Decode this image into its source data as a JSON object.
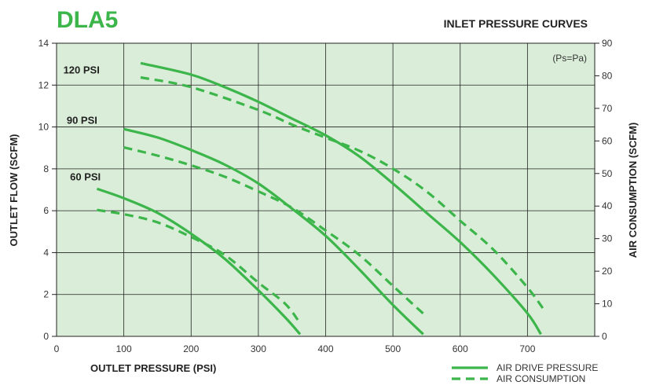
{
  "header": {
    "model": "DLA5",
    "subtitle": "INLET PRESSURE CURVES"
  },
  "colors": {
    "curve": "#3cb54a",
    "plot_background": "#d9edd8",
    "grid": "#222222",
    "title": "#3cb54a"
  },
  "chart_data": {
    "type": "line",
    "title": "INLET PRESSURE CURVES",
    "xlabel": "OUTLET PRESSURE (PSI)",
    "ylabel": "OUTLET FLOW (SCFM)",
    "y2label": "AIR CONSUMPTION (SCFM)",
    "xlim": [
      0,
      800
    ],
    "ylim": [
      0,
      14
    ],
    "y2lim": [
      0,
      90
    ],
    "xticks": [
      0,
      100,
      200,
      300,
      400,
      500,
      600,
      700
    ],
    "yticks": [
      0,
      2,
      4,
      6,
      8,
      10,
      12,
      14
    ],
    "y2ticks": [
      0,
      10,
      20,
      30,
      40,
      50,
      60,
      70,
      80,
      90
    ],
    "grid": true,
    "note": "(Ps=Pa)",
    "curve_labels": [
      {
        "text": "120 PSI",
        "x": 10,
        "y": 12.7
      },
      {
        "text": "90 PSI",
        "x": 15,
        "y": 10.3
      },
      {
        "text": "60 PSI",
        "x": 20,
        "y": 7.6
      }
    ],
    "legend": {
      "position": "bottom-right",
      "entries": [
        {
          "label": "AIR DRIVE PRESSURE",
          "style": "solid"
        },
        {
          "label": "AIR CONSUMPTION",
          "style": "dashed"
        }
      ]
    },
    "series": [
      {
        "group": "120 PSI",
        "style": "solid",
        "axis": "left",
        "x": [
          125,
          200,
          250,
          300,
          350,
          400,
          450,
          500,
          550,
          600,
          650,
          700,
          720
        ],
        "y": [
          13.05,
          12.5,
          11.9,
          11.2,
          10.4,
          9.6,
          8.6,
          7.3,
          5.9,
          4.5,
          2.9,
          1.1,
          0.1
        ]
      },
      {
        "group": "120 PSI",
        "style": "dashed",
        "axis": "right",
        "x": [
          125,
          200,
          300,
          350,
          400,
          450,
          500,
          550,
          600,
          650,
          700,
          725
        ],
        "y": [
          79.5,
          76.5,
          69.5,
          65,
          61,
          57,
          51.5,
          44.5,
          35.5,
          26.5,
          15,
          8
        ]
      },
      {
        "group": "90 PSI",
        "style": "solid",
        "axis": "left",
        "x": [
          100,
          150,
          200,
          250,
          300,
          350,
          400,
          450,
          500,
          545
        ],
        "y": [
          9.9,
          9.5,
          8.9,
          8.2,
          7.3,
          6.1,
          4.8,
          3.2,
          1.5,
          0.1
        ]
      },
      {
        "group": "90 PSI",
        "style": "dashed",
        "axis": "right",
        "x": [
          100,
          150,
          200,
          250,
          300,
          350,
          400,
          450,
          500,
          545
        ],
        "y": [
          58,
          55.5,
          52.5,
          49,
          44.5,
          39.5,
          32.5,
          25,
          15.5,
          7
        ]
      },
      {
        "group": "60 PSI",
        "style": "solid",
        "axis": "left",
        "x": [
          60,
          100,
          150,
          200,
          250,
          300,
          340,
          362
        ],
        "y": [
          7.05,
          6.6,
          5.9,
          4.9,
          3.7,
          2.2,
          0.9,
          0.1
        ]
      },
      {
        "group": "60 PSI",
        "style": "dashed",
        "axis": "right",
        "x": [
          60,
          100,
          150,
          200,
          250,
          300,
          340,
          362
        ],
        "y": [
          38.8,
          37.5,
          35,
          30.5,
          25,
          16.5,
          10,
          4
        ]
      }
    ]
  }
}
